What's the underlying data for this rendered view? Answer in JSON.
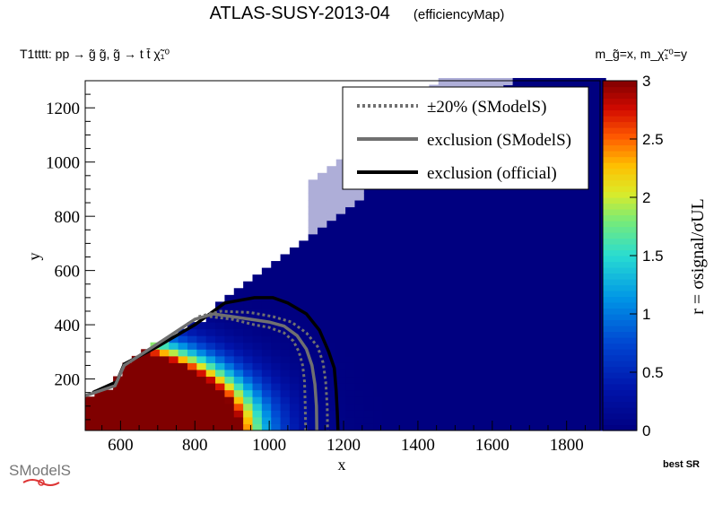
{
  "header": {
    "title": "ATLAS-SUSY-2013-04",
    "subtitle": "(efficiencyMap)",
    "process": "T1tttt: pp  → g̃ g̃, g̃  → t t̄  χ̃₁⁰",
    "axis_mapping": "m_g̃=x, m_χ̃₁⁰=y",
    "best_sr": "best SR",
    "logo_text": "SModelS"
  },
  "chart_data": {
    "type": "heatmap",
    "xlabel": "x",
    "ylabel": "y",
    "zlabel": "r = σsignal/σUL",
    "xlim": [
      505,
      1890
    ],
    "ylim": [
      10,
      1300
    ],
    "zlim": [
      0,
      3
    ],
    "x_ticks": [
      600,
      800,
      1000,
      1200,
      1400,
      1600,
      1800
    ],
    "y_ticks": [
      200,
      400,
      600,
      800,
      1000,
      1200
    ],
    "z_ticks": [
      0,
      0.5,
      1,
      1.5,
      2,
      2.5,
      3
    ],
    "kinematic_boundary": [
      [
        525,
        138
      ],
      [
        585,
        175
      ],
      [
        610,
        255
      ],
      [
        825,
        420
      ],
      [
        1890,
        1550
      ]
    ],
    "legend": {
      "placement": "top-right",
      "entries": [
        {
          "label": "±20% (SModelS)",
          "style": "dotted",
          "color": "#707070"
        },
        {
          "label": "exclusion (SModelS)",
          "style": "solid",
          "color": "#707070"
        },
        {
          "label": "exclusion (official)",
          "style": "solid",
          "color": "#000000"
        }
      ]
    },
    "series": [
      {
        "name": "exclusion (official)",
        "points": [
          [
            525,
            150
          ],
          [
            590,
            190
          ],
          [
            610,
            255
          ],
          [
            700,
            320
          ],
          [
            800,
            400
          ],
          [
            880,
            480
          ],
          [
            960,
            500
          ],
          [
            1010,
            500
          ],
          [
            1050,
            480
          ],
          [
            1100,
            440
          ],
          [
            1135,
            380
          ],
          [
            1160,
            300
          ],
          [
            1175,
            240
          ],
          [
            1180,
            160
          ],
          [
            1183,
            80
          ],
          [
            1185,
            10
          ]
        ]
      },
      {
        "name": "exclusion (SModelS)",
        "points": [
          [
            505,
            138
          ],
          [
            585,
            175
          ],
          [
            610,
            250
          ],
          [
            700,
            330
          ],
          [
            800,
            420
          ],
          [
            850,
            440
          ],
          [
            900,
            430
          ],
          [
            950,
            420
          ],
          [
            1000,
            410
          ],
          [
            1040,
            395
          ],
          [
            1075,
            360
          ],
          [
            1100,
            310
          ],
          [
            1115,
            250
          ],
          [
            1123,
            180
          ],
          [
            1127,
            100
          ],
          [
            1128,
            10
          ]
        ]
      },
      {
        "name": "±20% upper",
        "points": [
          [
            840,
            430
          ],
          [
            900,
            420
          ],
          [
            960,
            400
          ],
          [
            1000,
            390
          ],
          [
            1040,
            370
          ],
          [
            1065,
            340
          ],
          [
            1080,
            300
          ],
          [
            1090,
            250
          ],
          [
            1095,
            190
          ],
          [
            1097,
            100
          ],
          [
            1098,
            10
          ]
        ]
      },
      {
        "name": "±20% lower",
        "points": [
          [
            810,
            430
          ],
          [
            870,
            450
          ],
          [
            950,
            445
          ],
          [
            1010,
            430
          ],
          [
            1060,
            410
          ],
          [
            1100,
            370
          ],
          [
            1130,
            320
          ],
          [
            1145,
            260
          ],
          [
            1152,
            190
          ],
          [
            1156,
            100
          ],
          [
            1157,
            10
          ]
        ]
      }
    ]
  }
}
